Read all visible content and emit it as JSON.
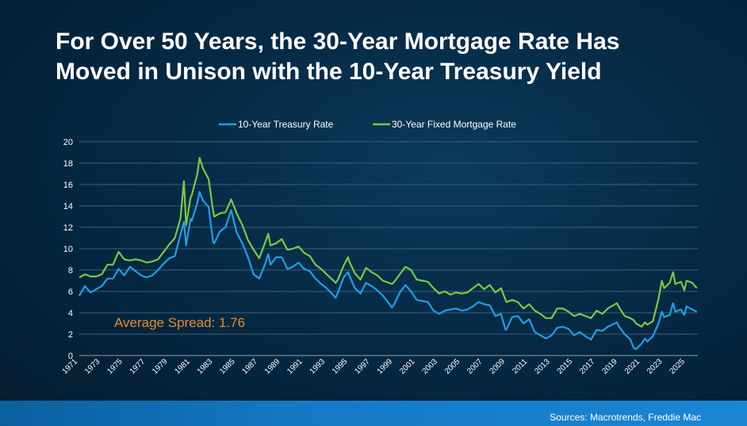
{
  "title_line1": "For Over 50 Years, the 30-Year Mortgage Rate Has",
  "title_line2": "Moved in Unison with the 10-Year Treasury Yield",
  "source": "Sources: Macrotrends, Freddie Mac",
  "chart_data": {
    "type": "line",
    "title": "For Over 50 Years, the 30-Year Mortgage Rate Has Moved in Unison with the 10-Year Treasury Yield",
    "xlabel": "",
    "ylabel": "",
    "ylim": [
      0,
      20
    ],
    "xlim": [
      1971,
      2026
    ],
    "yticks": [
      0,
      2,
      4,
      6,
      8,
      10,
      12,
      14,
      16,
      18,
      20
    ],
    "xticks": [
      "1971",
      "1973",
      "1975",
      "1977",
      "1979",
      "1981",
      "1983",
      "1985",
      "1987",
      "1989",
      "1991",
      "1993",
      "1995",
      "1997",
      "1999",
      "2001",
      "2003",
      "2005",
      "2007",
      "2009",
      "2011",
      "2013",
      "2015",
      "2017",
      "2019",
      "2021",
      "2023",
      "2025"
    ],
    "grid": true,
    "legend_position": "top-center",
    "annotation": "Average Spread: 1.76",
    "series": [
      {
        "name": "10-Year Treasury Rate",
        "color": "#1ea0e6",
        "points": [
          [
            1971,
            5.6
          ],
          [
            1971.5,
            6.5
          ],
          [
            1972,
            5.9
          ],
          [
            1972.5,
            6.2
          ],
          [
            1973,
            6.5
          ],
          [
            1973.5,
            7.2
          ],
          [
            1974,
            7.2
          ],
          [
            1974.5,
            8.1
          ],
          [
            1975,
            7.5
          ],
          [
            1975.5,
            8.3
          ],
          [
            1976,
            7.9
          ],
          [
            1976.5,
            7.5
          ],
          [
            1977,
            7.3
          ],
          [
            1977.5,
            7.5
          ],
          [
            1978,
            8.0
          ],
          [
            1978.5,
            8.6
          ],
          [
            1979,
            9.1
          ],
          [
            1979.5,
            9.3
          ],
          [
            1980,
            11.3
          ],
          [
            1980.3,
            12.5
          ],
          [
            1980.5,
            10.3
          ],
          [
            1980.9,
            12.8
          ],
          [
            1981,
            12.6
          ],
          [
            1981.5,
            14.3
          ],
          [
            1981.7,
            15.3
          ],
          [
            1982,
            14.5
          ],
          [
            1982.5,
            13.9
          ],
          [
            1982.9,
            10.6
          ],
          [
            1983,
            10.5
          ],
          [
            1983.5,
            11.6
          ],
          [
            1984,
            12.0
          ],
          [
            1984.5,
            13.6
          ],
          [
            1985,
            11.5
          ],
          [
            1985.5,
            10.5
          ],
          [
            1986,
            9.2
          ],
          [
            1986.5,
            7.6
          ],
          [
            1987,
            7.2
          ],
          [
            1987.5,
            8.5
          ],
          [
            1987.8,
            9.5
          ],
          [
            1988,
            8.5
          ],
          [
            1988.5,
            9.2
          ],
          [
            1989,
            9.2
          ],
          [
            1989.5,
            8.1
          ],
          [
            1990,
            8.3
          ],
          [
            1990.5,
            8.7
          ],
          [
            1991,
            8.1
          ],
          [
            1991.5,
            7.9
          ],
          [
            1992,
            7.2
          ],
          [
            1992.5,
            6.7
          ],
          [
            1993,
            6.3
          ],
          [
            1993.8,
            5.4
          ],
          [
            1994,
            5.9
          ],
          [
            1994.5,
            7.3
          ],
          [
            1994.9,
            7.8
          ],
          [
            1995,
            7.5
          ],
          [
            1995.5,
            6.3
          ],
          [
            1996,
            5.8
          ],
          [
            1996.5,
            6.8
          ],
          [
            1997,
            6.5
          ],
          [
            1997.5,
            6.1
          ],
          [
            1998,
            5.6
          ],
          [
            1998.8,
            4.5
          ],
          [
            1999,
            4.8
          ],
          [
            1999.5,
            5.9
          ],
          [
            2000,
            6.6
          ],
          [
            2000.5,
            6.0
          ],
          [
            2001,
            5.2
          ],
          [
            2001.5,
            5.1
          ],
          [
            2002,
            5.0
          ],
          [
            2002.5,
            4.2
          ],
          [
            2003,
            3.9
          ],
          [
            2003.5,
            4.2
          ],
          [
            2004,
            4.3
          ],
          [
            2004.5,
            4.4
          ],
          [
            2005,
            4.2
          ],
          [
            2005.5,
            4.3
          ],
          [
            2006,
            4.6
          ],
          [
            2006.5,
            5.0
          ],
          [
            2007,
            4.8
          ],
          [
            2007.5,
            4.7
          ],
          [
            2008,
            3.7
          ],
          [
            2008.5,
            3.9
          ],
          [
            2008.9,
            2.4
          ],
          [
            2009,
            2.5
          ],
          [
            2009.5,
            3.6
          ],
          [
            2010,
            3.7
          ],
          [
            2010.5,
            3.0
          ],
          [
            2011,
            3.4
          ],
          [
            2011.5,
            2.2
          ],
          [
            2012,
            1.9
          ],
          [
            2012.5,
            1.6
          ],
          [
            2013,
            1.9
          ],
          [
            2013.5,
            2.6
          ],
          [
            2014,
            2.7
          ],
          [
            2014.5,
            2.5
          ],
          [
            2015,
            1.9
          ],
          [
            2015.5,
            2.2
          ],
          [
            2016,
            1.8
          ],
          [
            2016.5,
            1.5
          ],
          [
            2017,
            2.4
          ],
          [
            2017.5,
            2.3
          ],
          [
            2018,
            2.7
          ],
          [
            2018.8,
            3.1
          ],
          [
            2019,
            2.7
          ],
          [
            2019.5,
            2.0
          ],
          [
            2020,
            1.5
          ],
          [
            2020.3,
            0.7
          ],
          [
            2020.5,
            0.6
          ],
          [
            2021,
            1.1
          ],
          [
            2021.3,
            1.6
          ],
          [
            2021.5,
            1.3
          ],
          [
            2022,
            1.8
          ],
          [
            2022.5,
            3.0
          ],
          [
            2022.8,
            4.1
          ],
          [
            2023,
            3.6
          ],
          [
            2023.5,
            3.8
          ],
          [
            2023.8,
            4.9
          ],
          [
            2024,
            4.1
          ],
          [
            2024.5,
            4.3
          ],
          [
            2024.8,
            3.8
          ],
          [
            2025,
            4.6
          ],
          [
            2025.5,
            4.3
          ],
          [
            2025.9,
            4.1
          ]
        ]
      },
      {
        "name": "30-Year Fixed Mortgage Rate",
        "color": "#7ac943",
        "points": [
          [
            1971,
            7.3
          ],
          [
            1971.5,
            7.6
          ],
          [
            1972,
            7.4
          ],
          [
            1972.5,
            7.4
          ],
          [
            1973,
            7.6
          ],
          [
            1973.5,
            8.5
          ],
          [
            1974,
            8.5
          ],
          [
            1974.5,
            9.7
          ],
          [
            1975,
            9.0
          ],
          [
            1975.5,
            8.9
          ],
          [
            1976,
            9.0
          ],
          [
            1976.5,
            8.9
          ],
          [
            1977,
            8.7
          ],
          [
            1977.5,
            8.8
          ],
          [
            1978,
            9.0
          ],
          [
            1978.5,
            9.7
          ],
          [
            1979,
            10.4
          ],
          [
            1979.5,
            11.0
          ],
          [
            1980,
            12.8
          ],
          [
            1980.3,
            16.3
          ],
          [
            1980.5,
            12.2
          ],
          [
            1980.9,
            14.8
          ],
          [
            1981,
            15.0
          ],
          [
            1981.5,
            17.0
          ],
          [
            1981.7,
            18.5
          ],
          [
            1982,
            17.5
          ],
          [
            1982.5,
            16.5
          ],
          [
            1982.9,
            13.5
          ],
          [
            1983,
            13.0
          ],
          [
            1983.5,
            13.3
          ],
          [
            1984,
            13.4
          ],
          [
            1984.5,
            14.6
          ],
          [
            1985,
            13.3
          ],
          [
            1985.5,
            12.2
          ],
          [
            1986,
            10.8
          ],
          [
            1986.5,
            9.9
          ],
          [
            1987,
            9.1
          ],
          [
            1987.5,
            10.5
          ],
          [
            1987.8,
            11.4
          ],
          [
            1988,
            10.3
          ],
          [
            1988.5,
            10.5
          ],
          [
            1989,
            10.9
          ],
          [
            1989.5,
            9.9
          ],
          [
            1990,
            10.0
          ],
          [
            1990.5,
            10.2
          ],
          [
            1991,
            9.6
          ],
          [
            1991.5,
            9.3
          ],
          [
            1992,
            8.5
          ],
          [
            1992.5,
            8.1
          ],
          [
            1993,
            7.6
          ],
          [
            1993.8,
            6.8
          ],
          [
            1994,
            7.1
          ],
          [
            1994.5,
            8.4
          ],
          [
            1994.9,
            9.2
          ],
          [
            1995,
            8.8
          ],
          [
            1995.5,
            7.7
          ],
          [
            1996,
            7.1
          ],
          [
            1996.5,
            8.2
          ],
          [
            1997,
            7.8
          ],
          [
            1997.5,
            7.5
          ],
          [
            1998,
            7.0
          ],
          [
            1998.8,
            6.7
          ],
          [
            1999,
            6.9
          ],
          [
            1999.5,
            7.6
          ],
          [
            2000,
            8.3
          ],
          [
            2000.5,
            8.0
          ],
          [
            2001,
            7.1
          ],
          [
            2001.5,
            7.0
          ],
          [
            2002,
            6.9
          ],
          [
            2002.5,
            6.3
          ],
          [
            2003,
            5.8
          ],
          [
            2003.5,
            6.0
          ],
          [
            2004,
            5.7
          ],
          [
            2004.5,
            5.9
          ],
          [
            2005,
            5.8
          ],
          [
            2005.5,
            5.9
          ],
          [
            2006,
            6.3
          ],
          [
            2006.5,
            6.7
          ],
          [
            2007,
            6.2
          ],
          [
            2007.5,
            6.6
          ],
          [
            2008,
            5.9
          ],
          [
            2008.5,
            6.3
          ],
          [
            2008.9,
            5.2
          ],
          [
            2009,
            5.0
          ],
          [
            2009.5,
            5.2
          ],
          [
            2010,
            5.0
          ],
          [
            2010.5,
            4.4
          ],
          [
            2011,
            4.8
          ],
          [
            2011.5,
            4.2
          ],
          [
            2012,
            3.9
          ],
          [
            2012.5,
            3.5
          ],
          [
            2013,
            3.5
          ],
          [
            2013.5,
            4.4
          ],
          [
            2014,
            4.4
          ],
          [
            2014.5,
            4.1
          ],
          [
            2015,
            3.7
          ],
          [
            2015.5,
            3.9
          ],
          [
            2016,
            3.7
          ],
          [
            2016.5,
            3.5
          ],
          [
            2017,
            4.2
          ],
          [
            2017.5,
            3.9
          ],
          [
            2018,
            4.4
          ],
          [
            2018.8,
            4.9
          ],
          [
            2019,
            4.5
          ],
          [
            2019.5,
            3.7
          ],
          [
            2020,
            3.5
          ],
          [
            2020.3,
            3.3
          ],
          [
            2020.5,
            3.0
          ],
          [
            2021,
            2.7
          ],
          [
            2021.3,
            3.1
          ],
          [
            2021.5,
            2.9
          ],
          [
            2022,
            3.2
          ],
          [
            2022.5,
            5.3
          ],
          [
            2022.8,
            7.0
          ],
          [
            2023,
            6.3
          ],
          [
            2023.5,
            6.8
          ],
          [
            2023.8,
            7.8
          ],
          [
            2024,
            6.7
          ],
          [
            2024.5,
            6.9
          ],
          [
            2024.8,
            6.1
          ],
          [
            2025,
            7.0
          ],
          [
            2025.5,
            6.8
          ],
          [
            2025.9,
            6.3
          ]
        ]
      }
    ]
  }
}
